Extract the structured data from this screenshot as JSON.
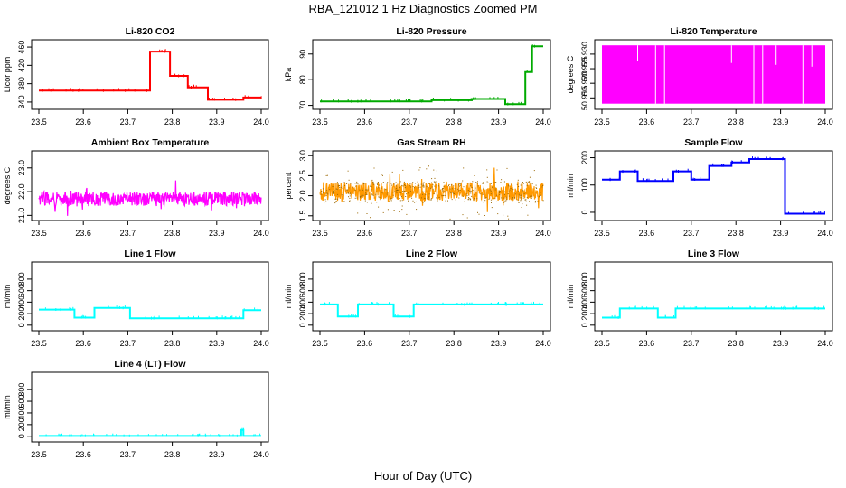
{
  "figure": {
    "title": "RBA_121012  1 Hz Diagnostics Zoomed PM",
    "xlabel": "Hour of Day (UTC)"
  },
  "chart_data": [
    {
      "type": "line",
      "title": "Li-820 CO2",
      "ylabel": "Licor ppm",
      "color": "#ff0000",
      "xlim": [
        23.5,
        24.0
      ],
      "xticks": [
        "23.5",
        "23.6",
        "23.7",
        "23.8",
        "23.9",
        "24.0"
      ],
      "ylim": [
        330,
        470
      ],
      "yticks": [
        "340",
        "380",
        "420",
        "460"
      ],
      "segments": [
        {
          "x": [
            23.5,
            23.75
          ],
          "y": 365
        },
        {
          "x": [
            23.75,
            23.795
          ],
          "y": 450
        },
        {
          "x": [
            23.795,
            23.835
          ],
          "y": 397
        },
        {
          "x": [
            23.835,
            23.88
          ],
          "y": 372
        },
        {
          "x": [
            23.88,
            23.93
          ],
          "y": 345
        },
        {
          "x": [
            23.93,
            23.96
          ],
          "y": 345
        },
        {
          "x": [
            23.96,
            24.0
          ],
          "y": 350
        }
      ]
    },
    {
      "type": "line",
      "title": "Li-820 Pressure",
      "ylabel": "kPa",
      "color": "#00aa00",
      "xlim": [
        23.5,
        24.0
      ],
      "xticks": [
        "23.5",
        "23.6",
        "23.7",
        "23.8",
        "23.9",
        "24.0"
      ],
      "ylim": [
        69.5,
        94.5
      ],
      "yticks": [
        "70",
        "80",
        "90"
      ],
      "segments": [
        {
          "x": [
            23.5,
            23.75
          ],
          "y": 71.5
        },
        {
          "x": [
            23.75,
            23.84
          ],
          "y": 72.0
        },
        {
          "x": [
            23.84,
            23.915
          ],
          "y": 72.5
        },
        {
          "x": [
            23.915,
            23.96
          ],
          "y": 70.5
        },
        {
          "x": [
            23.96,
            23.975
          ],
          "y": 83.0
        },
        {
          "x": [
            23.975,
            24.0
          ],
          "y": 93.0
        }
      ]
    },
    {
      "type": "line",
      "title": "Li-820 Temperature",
      "ylabel": "degrees C",
      "color": "#ff00ff",
      "xlim": [
        23.5,
        24.0
      ],
      "xticks": [
        "23.5",
        "23.6",
        "23.7",
        "23.8",
        "23.9",
        "24.0"
      ],
      "ylim": [
        50.912,
        50.934
      ],
      "yticks": [
        "50.915",
        "50.920",
        "50.925",
        "50.930"
      ],
      "range": [
        50.913,
        50.933
      ],
      "gaps_x": [
        23.58,
        23.62,
        23.64,
        23.79,
        23.84,
        23.86,
        23.89,
        23.91,
        23.95,
        23.97
      ]
    },
    {
      "type": "line",
      "title": "Ambient Box Temperature",
      "ylabel": "degrees C",
      "color": "#ff00ff",
      "xlim": [
        23.5,
        24.0
      ],
      "xticks": [
        "23.5",
        "23.6",
        "23.7",
        "23.8",
        "23.9",
        "24.0"
      ],
      "ylim": [
        20.9,
        23.6
      ],
      "yticks": [
        "21.0",
        "22.0",
        "23.0"
      ],
      "center": 21.7,
      "spread": 0.6
    },
    {
      "type": "line",
      "title": "Gas Stream RH",
      "ylabel": "percent",
      "color": "#ff9900",
      "xlim": [
        23.5,
        24.0
      ],
      "xticks": [
        "23.5",
        "23.6",
        "23.7",
        "23.8",
        "23.9",
        "24.0"
      ],
      "ylim": [
        1.45,
        3.05
      ],
      "yticks": [
        "1.5",
        "2.0",
        "2.5",
        "3.0"
      ],
      "center": 2.1,
      "spread": 0.45
    },
    {
      "type": "line",
      "title": "Sample Flow",
      "ylabel": "ml/min",
      "color": "#0000ff",
      "xlim": [
        23.5,
        24.0
      ],
      "xticks": [
        "23.5",
        "23.6",
        "23.7",
        "23.8",
        "23.9",
        "24.0"
      ],
      "ylim": [
        -20,
        215
      ],
      "yticks": [
        "0",
        "100",
        "200"
      ],
      "segments": [
        {
          "x": [
            23.5,
            23.54
          ],
          "y": 120
        },
        {
          "x": [
            23.54,
            23.58
          ],
          "y": 150
        },
        {
          "x": [
            23.58,
            23.66
          ],
          "y": 115
        },
        {
          "x": [
            23.66,
            23.7
          ],
          "y": 150
        },
        {
          "x": [
            23.7,
            23.74
          ],
          "y": 120
        },
        {
          "x": [
            23.74,
            23.79
          ],
          "y": 170
        },
        {
          "x": [
            23.79,
            23.83
          ],
          "y": 183
        },
        {
          "x": [
            23.83,
            23.91
          ],
          "y": 195
        },
        {
          "x": [
            23.91,
            24.0
          ],
          "y": -5
        }
      ]
    },
    {
      "type": "line",
      "title": "Line 1 Flow",
      "ylabel": "ml/min",
      "color": "#00ffff",
      "xlim": [
        23.5,
        24.0
      ],
      "xticks": [
        "23.5",
        "23.6",
        "23.7",
        "23.8",
        "23.9",
        "24.0"
      ],
      "ylim": [
        -50,
        1050
      ],
      "yticks": [
        "0",
        "200",
        "400",
        "600",
        "800"
      ],
      "segments": [
        {
          "x": [
            23.5,
            23.58
          ],
          "y": 270
        },
        {
          "x": [
            23.58,
            23.625
          ],
          "y": 130
        },
        {
          "x": [
            23.625,
            23.705
          ],
          "y": 300
        },
        {
          "x": [
            23.705,
            23.96
          ],
          "y": 120
        },
        {
          "x": [
            23.96,
            24.0
          ],
          "y": 260
        }
      ]
    },
    {
      "type": "line",
      "title": "Line 2 Flow",
      "ylabel": "ml/min",
      "color": "#00ffff",
      "xlim": [
        23.5,
        24.0
      ],
      "xticks": [
        "23.5",
        "23.6",
        "23.7",
        "23.8",
        "23.9",
        "24.0"
      ],
      "ylim": [
        -50,
        1050
      ],
      "yticks": [
        "0",
        "200",
        "400",
        "600",
        "800"
      ],
      "segments": [
        {
          "x": [
            23.5,
            23.54
          ],
          "y": 360
        },
        {
          "x": [
            23.54,
            23.585
          ],
          "y": 150
        },
        {
          "x": [
            23.585,
            23.665
          ],
          "y": 360
        },
        {
          "x": [
            23.665,
            23.71
          ],
          "y": 150
        },
        {
          "x": [
            23.71,
            24.0
          ],
          "y": 360
        }
      ]
    },
    {
      "type": "line",
      "title": "Line 3 Flow",
      "ylabel": "ml/min",
      "color": "#00ffff",
      "xlim": [
        23.5,
        24.0
      ],
      "xticks": [
        "23.5",
        "23.6",
        "23.7",
        "23.8",
        "23.9",
        "24.0"
      ],
      "ylim": [
        -50,
        1050
      ],
      "yticks": [
        "0",
        "200",
        "400",
        "600",
        "800"
      ],
      "segments": [
        {
          "x": [
            23.5,
            23.54
          ],
          "y": 130
        },
        {
          "x": [
            23.54,
            23.625
          ],
          "y": 290
        },
        {
          "x": [
            23.625,
            23.665
          ],
          "y": 130
        },
        {
          "x": [
            23.665,
            24.0
          ],
          "y": 290
        }
      ]
    },
    {
      "type": "line",
      "title": "Line 4 (LT) Flow",
      "ylabel": "ml/min",
      "color": "#00ffff",
      "xlim": [
        23.5,
        24.0
      ],
      "xticks": [
        "23.5",
        "23.6",
        "23.7",
        "23.8",
        "23.9",
        "24.0"
      ],
      "ylim": [
        -50,
        1050
      ],
      "yticks": [
        "0",
        "200",
        "400",
        "600",
        "800"
      ],
      "segments": [
        {
          "x": [
            23.5,
            23.955
          ],
          "y": 5
        },
        {
          "x": [
            23.955,
            23.96
          ],
          "y": 110
        },
        {
          "x": [
            23.96,
            24.0
          ],
          "y": 5
        }
      ]
    }
  ]
}
